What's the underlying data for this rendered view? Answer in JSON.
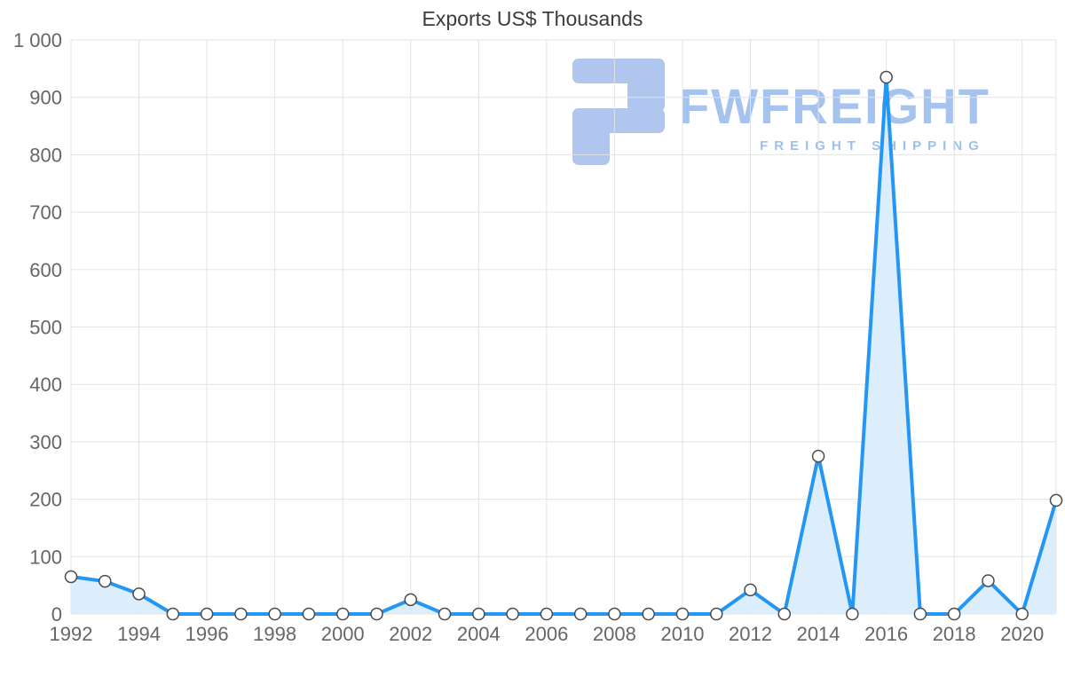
{
  "title": "Exports US$ Thousands",
  "watermark": {
    "brand": "FWFREIGHT",
    "tagline": "FREIGHT SHIPPING"
  },
  "chart_data": {
    "type": "area",
    "title": "Exports US$ Thousands",
    "xlabel": "",
    "ylabel": "",
    "x": [
      1992,
      1993,
      1994,
      1995,
      1996,
      1997,
      1998,
      1999,
      2000,
      2001,
      2002,
      2003,
      2004,
      2005,
      2006,
      2007,
      2008,
      2009,
      2010,
      2011,
      2012,
      2013,
      2014,
      2015,
      2016,
      2017,
      2018,
      2019,
      2020,
      2021
    ],
    "series": [
      {
        "name": "Exports US$ Thousands",
        "values": [
          65,
          57,
          35,
          0,
          0,
          0,
          0,
          0,
          0,
          0,
          25,
          0,
          0,
          0,
          0,
          0,
          0,
          0,
          0,
          0,
          42,
          0,
          275,
          0,
          935,
          0,
          0,
          58,
          0,
          198
        ]
      }
    ],
    "ylim": [
      0,
      1000
    ],
    "y_ticks": [
      0,
      100,
      200,
      300,
      400,
      500,
      600,
      700,
      800,
      900,
      1000
    ],
    "y_tick_labels": [
      "0",
      "100",
      "200",
      "300",
      "400",
      "500",
      "600",
      "700",
      "800",
      "900",
      "1 000"
    ],
    "x_ticks": [
      1992,
      1994,
      1996,
      1998,
      2000,
      2002,
      2004,
      2006,
      2008,
      2010,
      2012,
      2014,
      2016,
      2018,
      2020
    ],
    "x_tick_labels": [
      "1992",
      "1994",
      "1996",
      "1998",
      "2000",
      "2002",
      "2004",
      "2006",
      "2008",
      "2010",
      "2012",
      "2014",
      "2016",
      "2018",
      "2020"
    ],
    "grid": true,
    "legend": false,
    "colors": {
      "line": "#2496f3",
      "fill": "#d8ebfc",
      "marker_fill": "#ffffff",
      "marker_stroke": "#4a4a4a",
      "grid": "#e3e3e3",
      "tick_label": "#666666",
      "watermark": "#aec6ef"
    }
  }
}
